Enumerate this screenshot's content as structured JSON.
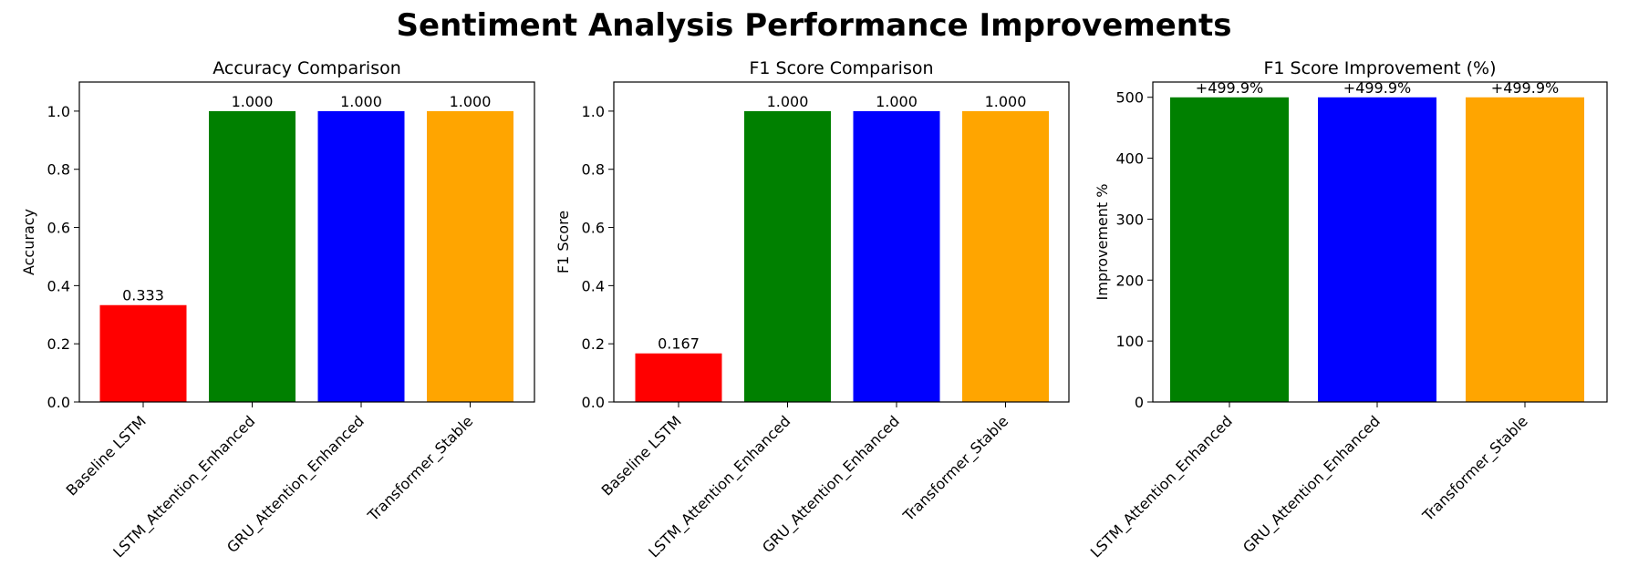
{
  "figure_title": "Sentiment Analysis Performance Improvements",
  "chart_data": [
    {
      "type": "bar",
      "title": "Accuracy Comparison",
      "xlabel": "",
      "ylabel": "Accuracy",
      "categories": [
        "Baseline LSTM",
        "LSTM_Attention_Enhanced",
        "GRU_Attention_Enhanced",
        "Transformer_Stable"
      ],
      "values": [
        0.333,
        1.0,
        1.0,
        1.0
      ],
      "value_labels": [
        "0.333",
        "1.000",
        "1.000",
        "1.000"
      ],
      "colors": [
        "#ff0000",
        "#008000",
        "#0000ff",
        "#ffa500"
      ],
      "ylim": [
        0,
        1.1
      ],
      "yticks": [
        0.0,
        0.2,
        0.4,
        0.6,
        0.8,
        1.0
      ],
      "ytick_labels": [
        "0.0",
        "0.2",
        "0.4",
        "0.6",
        "0.8",
        "1.0"
      ],
      "grid": false
    },
    {
      "type": "bar",
      "title": "F1 Score Comparison",
      "xlabel": "",
      "ylabel": "F1 Score",
      "categories": [
        "Baseline LSTM",
        "LSTM_Attention_Enhanced",
        "GRU_Attention_Enhanced",
        "Transformer_Stable"
      ],
      "values": [
        0.167,
        1.0,
        1.0,
        1.0
      ],
      "value_labels": [
        "0.167",
        "1.000",
        "1.000",
        "1.000"
      ],
      "colors": [
        "#ff0000",
        "#008000",
        "#0000ff",
        "#ffa500"
      ],
      "ylim": [
        0,
        1.1
      ],
      "yticks": [
        0.0,
        0.2,
        0.4,
        0.6,
        0.8,
        1.0
      ],
      "ytick_labels": [
        "0.0",
        "0.2",
        "0.4",
        "0.6",
        "0.8",
        "1.0"
      ],
      "grid": false
    },
    {
      "type": "bar",
      "title": "F1 Score Improvement (%)",
      "xlabel": "",
      "ylabel": "Improvement %",
      "categories": [
        "LSTM_Attention_Enhanced",
        "GRU_Attention_Enhanced",
        "Transformer_Stable"
      ],
      "values": [
        499.9,
        499.9,
        499.9
      ],
      "value_labels": [
        "+499.9%",
        "+499.9%",
        "+499.9%"
      ],
      "colors": [
        "#008000",
        "#0000ff",
        "#ffa500"
      ],
      "ylim": [
        0,
        525
      ],
      "yticks": [
        0,
        100,
        200,
        300,
        400,
        500
      ],
      "ytick_labels": [
        "0",
        "100",
        "200",
        "300",
        "400",
        "500"
      ],
      "grid": false
    }
  ]
}
